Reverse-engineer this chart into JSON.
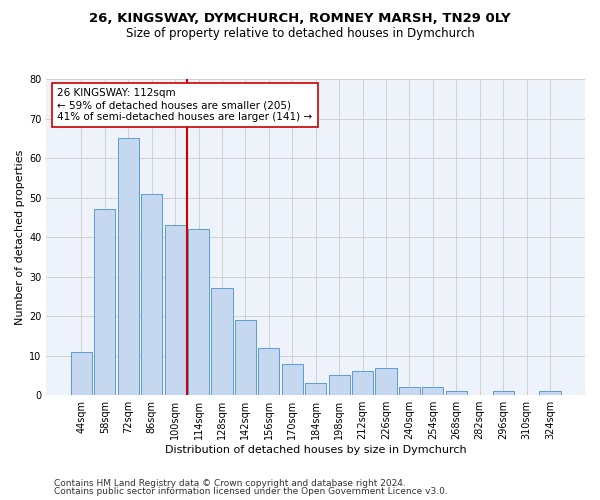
{
  "title_line1": "26, KINGSWAY, DYMCHURCH, ROMNEY MARSH, TN29 0LY",
  "title_line2": "Size of property relative to detached houses in Dymchurch",
  "xlabel": "Distribution of detached houses by size in Dymchurch",
  "ylabel": "Number of detached properties",
  "categories": [
    "44sqm",
    "58sqm",
    "72sqm",
    "86sqm",
    "100sqm",
    "114sqm",
    "128sqm",
    "142sqm",
    "156sqm",
    "170sqm",
    "184sqm",
    "198sqm",
    "212sqm",
    "226sqm",
    "240sqm",
    "254sqm",
    "268sqm",
    "282sqm",
    "296sqm",
    "310sqm",
    "324sqm"
  ],
  "values": [
    11,
    47,
    65,
    51,
    43,
    42,
    27,
    19,
    12,
    8,
    3,
    5,
    6,
    7,
    2,
    2,
    1,
    0,
    1,
    0,
    1
  ],
  "bar_color": "#c5d8f0",
  "bar_edge_color": "#5b9bd5",
  "reference_line_color": "#cc0000",
  "annotation_text": "26 KINGSWAY: 112sqm\n← 59% of detached houses are smaller (205)\n41% of semi-detached houses are larger (141) →",
  "annotation_box_color": "#ffffff",
  "annotation_box_edge": "#cc0000",
  "ylim": [
    0,
    80
  ],
  "yticks": [
    0,
    10,
    20,
    30,
    40,
    50,
    60,
    70,
    80
  ],
  "grid_color": "#d0d0d0",
  "bg_color": "#eef2fa",
  "footer_line1": "Contains HM Land Registry data © Crown copyright and database right 2024.",
  "footer_line2": "Contains public sector information licensed under the Open Government Licence v3.0.",
  "title_fontsize": 9.5,
  "subtitle_fontsize": 8.5,
  "axis_label_fontsize": 8,
  "tick_fontsize": 7,
  "annotation_fontsize": 7.5,
  "footer_fontsize": 6.5
}
